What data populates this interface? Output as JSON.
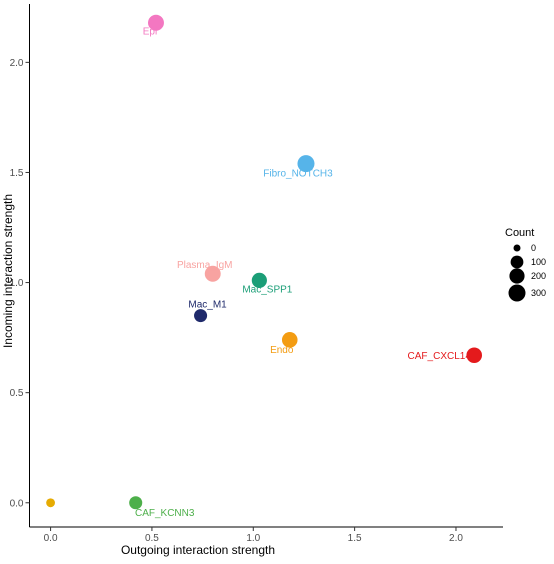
{
  "chart_data": {
    "type": "scatter",
    "title": "",
    "xlabel": "Outgoing interaction strength",
    "ylabel": "Incoming interaction strength",
    "xlim": [
      -0.104,
      2.232
    ],
    "ylim": [
      -0.11,
      2.265
    ],
    "x_ticks": [
      0.0,
      0.5,
      1.0,
      1.5,
      2.0
    ],
    "x_tick_labels": [
      "0.0",
      "0.5",
      "1.0",
      "1.5",
      "2.0"
    ],
    "y_ticks": [
      0.0,
      0.5,
      1.0,
      1.5,
      2.0
    ],
    "y_tick_labels": [
      "0.0",
      "0.5",
      "1.0",
      "1.5",
      "2.0"
    ],
    "grid": false,
    "points": [
      {
        "label": "Epi",
        "x": 0.52,
        "y": 2.18,
        "count": 240,
        "color": "#F377C1"
      },
      {
        "label": "Fibro_NOTCH3",
        "x": 1.26,
        "y": 1.54,
        "count": 300,
        "color": "#56B4E9"
      },
      {
        "label": "Plasma_IgM",
        "x": 0.8,
        "y": 1.04,
        "count": 240,
        "color": "#F8A3A1"
      },
      {
        "label": "Mac_SPP1",
        "x": 1.03,
        "y": 1.01,
        "count": 200,
        "color": "#1B9E77"
      },
      {
        "label": "Mac_M1",
        "x": 0.74,
        "y": 0.85,
        "count": 110,
        "color": "#1F2A6B"
      },
      {
        "label": "Endo",
        "x": 1.18,
        "y": 0.74,
        "count": 220,
        "color": "#F39C12"
      },
      {
        "label": "CAF_CXCL14",
        "x": 2.09,
        "y": 0.67,
        "count": 220,
        "color": "#E41A1C"
      },
      {
        "label": "CAF_KCNN3",
        "x": 0.42,
        "y": 0.0,
        "count": 110,
        "color": "#4DAF4A"
      },
      {
        "label": "",
        "x": 0.0,
        "y": 0.0,
        "count": 10,
        "color": "#E6AB02"
      }
    ],
    "legend": {
      "title": "Count",
      "position": "right",
      "entries": [
        {
          "label": "0",
          "count": 0
        },
        {
          "label": "100",
          "count": 100
        },
        {
          "label": "200",
          "count": 200
        },
        {
          "label": "300",
          "count": 300
        }
      ]
    }
  }
}
